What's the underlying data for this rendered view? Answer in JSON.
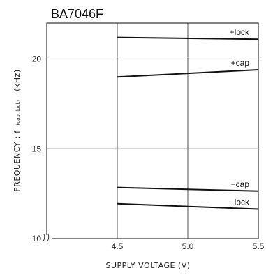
{
  "chart_data": {
    "type": "line",
    "title": "BA7046F",
    "xlabel": "SUPPLY VOLTAGE (V)",
    "ylabel_main": "FREQUENCY : f",
    "ylabel_sub": "(cap. lock)",
    "ylabel_unit": "(kHz)",
    "xlim": [
      4.0,
      5.5
    ],
    "ylim": [
      10,
      22
    ],
    "x_ticks": [
      4.5,
      5.0,
      5.5
    ],
    "x_tick_labels": [
      "4.5",
      "5.0",
      "5.5"
    ],
    "y_ticks": [
      10,
      15,
      20
    ],
    "y_tick_labels": [
      "10",
      "15",
      "20"
    ],
    "grid": true,
    "series": [
      {
        "name": "+lock",
        "x": [
          4.5,
          5.5
        ],
        "y": [
          21.2,
          21.1
        ]
      },
      {
        "name": "+cap",
        "x": [
          4.5,
          5.5
        ],
        "y": [
          19.0,
          19.4
        ]
      },
      {
        "name": "−cap",
        "x": [
          4.5,
          5.5
        ],
        "y": [
          12.85,
          12.65
        ]
      },
      {
        "name": "−lock",
        "x": [
          4.5,
          5.5
        ],
        "y": [
          11.95,
          11.65
        ]
      }
    ],
    "line_color": "#111111"
  }
}
